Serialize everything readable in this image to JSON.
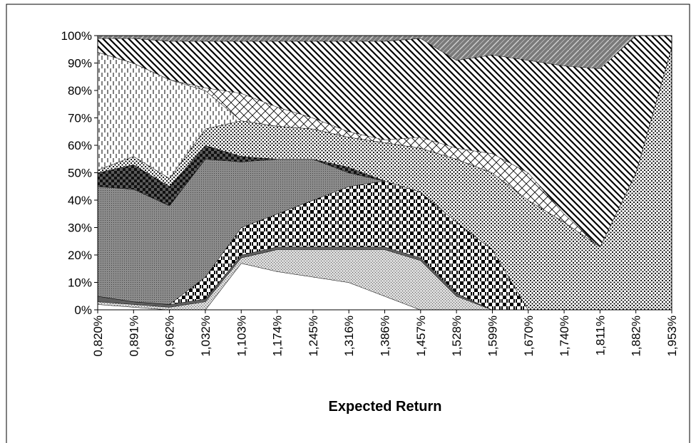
{
  "chart_data": {
    "type": "stacked_area",
    "x_label": "Expected Return",
    "categories": [
      "0,820%",
      "0,891%",
      "0,962%",
      "1,032%",
      "1,103%",
      "1,174%",
      "1,245%",
      "1,316%",
      "1,386%",
      "1,457%",
      "1,528%",
      "1,599%",
      "1,670%",
      "1,740%",
      "1,811%",
      "1,882%",
      "1,953%"
    ],
    "ylim": [
      0,
      100
    ],
    "yticks": [
      {
        "value": 0,
        "label": "0%"
      },
      {
        "value": 10,
        "label": "10%"
      },
      {
        "value": 20,
        "label": "20%"
      },
      {
        "value": 30,
        "label": "30%"
      },
      {
        "value": 40,
        "label": "40%"
      },
      {
        "value": 50,
        "label": "50%"
      },
      {
        "value": 60,
        "label": "60%"
      },
      {
        "value": 70,
        "label": "70%"
      },
      {
        "value": 80,
        "label": "80%"
      },
      {
        "value": 90,
        "label": "90%"
      },
      {
        "value": 100,
        "label": "100%"
      }
    ],
    "series": [
      {
        "color": "#ffffff",
        "values": [
          2,
          1,
          0,
          0,
          17,
          14,
          12,
          10,
          5,
          0,
          0,
          0,
          0,
          0,
          0,
          0,
          0
        ]
      },
      {
        "color": "#d9d9d9",
        "values": [
          1,
          1,
          1,
          3,
          2,
          8,
          10,
          12,
          17,
          18,
          5,
          0,
          0,
          0,
          0,
          0,
          0
        ]
      },
      {
        "color": "#606060",
        "values": [
          2,
          1,
          1,
          1,
          1,
          1,
          1,
          1,
          1,
          1,
          1,
          0,
          0,
          0,
          0,
          0,
          0
        ]
      },
      {
        "color": "#ffffff",
        "values": [
          0,
          0,
          0,
          8,
          10,
          12,
          17,
          22,
          24,
          24,
          26,
          22,
          0,
          0,
          0,
          0,
          0
        ]
      },
      {
        "color": "#8c8c8c",
        "values": [
          40,
          41,
          36,
          43,
          24,
          20,
          15,
          5,
          0,
          0,
          0,
          0,
          0,
          0,
          0,
          0,
          0
        ]
      },
      {
        "color": "#5a5a5a",
        "values": [
          5,
          9,
          7,
          5,
          2,
          0,
          0,
          2,
          0,
          0,
          0,
          0,
          0,
          0,
          0,
          0,
          0
        ]
      },
      {
        "color": "#ffffff",
        "values": [
          1,
          3,
          3,
          6,
          13,
          12,
          11,
          11,
          14,
          16,
          23,
          28,
          40,
          32,
          23,
          50,
          96
        ]
      },
      {
        "color": "#ffffff",
        "values": [
          43,
          34,
          36,
          14,
          0,
          0,
          0,
          0,
          0,
          0,
          0,
          0,
          0,
          0,
          0,
          0,
          0
        ]
      },
      {
        "color": "#ffffff",
        "values": [
          0,
          0,
          0,
          1,
          10,
          7,
          4,
          2,
          1,
          4,
          4,
          7,
          10,
          3,
          0,
          0,
          0
        ]
      },
      {
        "color": "#ffffff",
        "values": [
          5,
          9,
          14,
          17,
          19,
          24,
          28,
          33,
          36,
          36,
          32,
          36,
          41,
          54,
          65,
          50,
          4
        ]
      },
      {
        "color": "#7a7a7a",
        "values": [
          1,
          1,
          2,
          2,
          2,
          2,
          2,
          2,
          2,
          1,
          9,
          7,
          9,
          11,
          12,
          0,
          0
        ]
      }
    ]
  }
}
